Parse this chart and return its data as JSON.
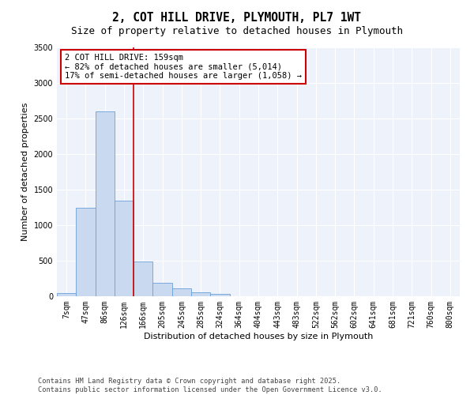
{
  "title": "2, COT HILL DRIVE, PLYMOUTH, PL7 1WT",
  "subtitle": "Size of property relative to detached houses in Plymouth",
  "xlabel": "Distribution of detached houses by size in Plymouth",
  "ylabel": "Number of detached properties",
  "categories": [
    "7sqm",
    "47sqm",
    "86sqm",
    "126sqm",
    "166sqm",
    "205sqm",
    "245sqm",
    "285sqm",
    "324sqm",
    "364sqm",
    "404sqm",
    "443sqm",
    "483sqm",
    "522sqm",
    "562sqm",
    "602sqm",
    "641sqm",
    "681sqm",
    "721sqm",
    "760sqm",
    "800sqm"
  ],
  "values": [
    50,
    1250,
    2600,
    1350,
    490,
    185,
    110,
    55,
    30,
    5,
    0,
    0,
    0,
    0,
    0,
    0,
    0,
    0,
    0,
    0,
    0
  ],
  "bar_color": "#c8d9f0",
  "bar_edge_color": "#6a9fd8",
  "vline_color": "#cc0000",
  "annotation_text": "2 COT HILL DRIVE: 159sqm\n← 82% of detached houses are smaller (5,014)\n17% of semi-detached houses are larger (1,058) →",
  "annotation_box_color": "#cc0000",
  "ylim": [
    0,
    3500
  ],
  "yticks": [
    0,
    500,
    1000,
    1500,
    2000,
    2500,
    3000,
    3500
  ],
  "background_color": "#eef2fb",
  "footer_line1": "Contains HM Land Registry data © Crown copyright and database right 2025.",
  "footer_line2": "Contains public sector information licensed under the Open Government Licence v3.0.",
  "title_fontsize": 10.5,
  "subtitle_fontsize": 9,
  "axis_label_fontsize": 8,
  "tick_fontsize": 7,
  "annotation_fontsize": 7.5,
  "footer_fontsize": 6.2
}
